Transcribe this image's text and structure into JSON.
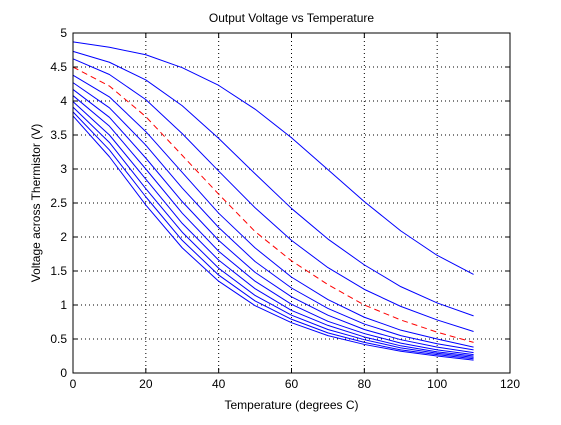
{
  "chart_data": {
    "type": "line",
    "title": "Output Voltage vs Temperature",
    "xlabel": "Temperature (degrees C)",
    "ylabel": "Voltage across Thermistor (V)",
    "xlim": [
      0,
      120
    ],
    "ylim": [
      0,
      5
    ],
    "xticks": [
      0,
      20,
      40,
      60,
      80,
      100,
      120
    ],
    "yticks": [
      0,
      0.5,
      1,
      1.5,
      2,
      2.5,
      3,
      3.5,
      4,
      4.5,
      5
    ],
    "xtick_labels": [
      "0",
      "20",
      "40",
      "60",
      "80",
      "100",
      "120"
    ],
    "ytick_labels": [
      "0",
      "0.5",
      "1",
      "1.5",
      "2",
      "2.5",
      "3",
      "3.5",
      "4",
      "4.5",
      "5"
    ],
    "grid": true,
    "legend": "none",
    "x": [
      0,
      10,
      20,
      30,
      40,
      50,
      60,
      70,
      80,
      90,
      100,
      110
    ],
    "series": [
      {
        "values": [
          4.87,
          4.79,
          4.68,
          4.49,
          4.23,
          3.88,
          3.46,
          2.99,
          2.52,
          2.09,
          1.73,
          1.45
        ],
        "color": "#0000ff",
        "style": "solid"
      },
      {
        "values": [
          4.73,
          4.57,
          4.31,
          3.93,
          3.45,
          2.93,
          2.42,
          1.97,
          1.59,
          1.27,
          1.03,
          0.84
        ],
        "color": "#0000ff",
        "style": "solid"
      },
      {
        "values": [
          4.62,
          4.39,
          4.02,
          3.52,
          2.97,
          2.43,
          1.95,
          1.55,
          1.23,
          0.98,
          0.78,
          0.61
        ],
        "color": "#0000ff",
        "style": "solid"
      },
      {
        "values": [
          4.5,
          4.22,
          3.77,
          3.2,
          2.63,
          2.08,
          1.65,
          1.3,
          1.0,
          0.78,
          0.6,
          0.45
        ],
        "color": "#ff0000",
        "style": "dashed"
      },
      {
        "values": [
          4.38,
          4.06,
          3.55,
          2.95,
          2.35,
          1.84,
          1.41,
          1.08,
          0.82,
          0.63,
          0.5,
          0.38
        ],
        "color": "#0000ff",
        "style": "solid"
      },
      {
        "values": [
          4.27,
          3.9,
          3.35,
          2.72,
          2.14,
          1.64,
          1.25,
          0.95,
          0.72,
          0.55,
          0.43,
          0.34
        ],
        "color": "#0000ff",
        "style": "solid"
      },
      {
        "values": [
          4.17,
          3.76,
          3.16,
          2.52,
          1.95,
          1.48,
          1.12,
          0.85,
          0.64,
          0.49,
          0.38,
          0.3
        ],
        "color": "#0000ff",
        "style": "solid"
      },
      {
        "values": [
          4.08,
          3.63,
          3.0,
          2.35,
          1.79,
          1.35,
          1.01,
          0.76,
          0.58,
          0.44,
          0.34,
          0.27
        ],
        "color": "#0000ff",
        "style": "solid"
      },
      {
        "values": [
          3.99,
          3.5,
          2.85,
          2.2,
          1.66,
          1.24,
          0.92,
          0.7,
          0.53,
          0.4,
          0.31,
          0.25
        ],
        "color": "#0000ff",
        "style": "solid"
      },
      {
        "values": [
          3.91,
          3.39,
          2.71,
          2.07,
          1.54,
          1.14,
          0.85,
          0.64,
          0.49,
          0.37,
          0.29,
          0.23
        ],
        "color": "#0000ff",
        "style": "solid"
      },
      {
        "values": [
          3.84,
          3.28,
          2.59,
          1.95,
          1.44,
          1.06,
          0.79,
          0.59,
          0.45,
          0.34,
          0.27,
          0.21
        ],
        "color": "#0000ff",
        "style": "solid"
      },
      {
        "values": [
          3.78,
          3.18,
          2.47,
          1.84,
          1.35,
          0.99,
          0.74,
          0.55,
          0.42,
          0.32,
          0.25,
          0.19
        ],
        "color": "#0000ff",
        "style": "solid"
      }
    ]
  }
}
